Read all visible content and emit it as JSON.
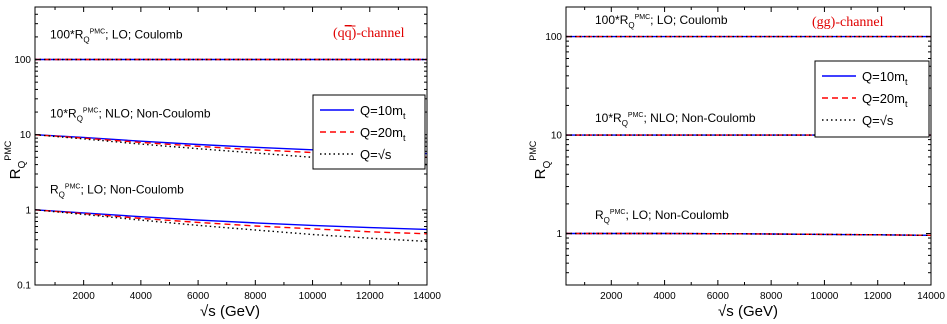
{
  "chart_data": [
    {
      "type": "line",
      "channel": "(qq)-channel",
      "channel_parts": [
        "(q",
        "q",
        ")-channel"
      ],
      "xlabel": "√s (GeV)",
      "ylabel": "R",
      "ylabel_sub": "Q",
      "ylabel_sup": "PMC",
      "yscale": "log",
      "xlim": [
        300,
        14000
      ],
      "ylim": [
        0.1,
        500
      ],
      "x_ticks": [
        2000,
        4000,
        6000,
        8000,
        10000,
        12000,
        14000
      ],
      "x_tick_labels": [
        "2000",
        "4000",
        "6000",
        "8000",
        "10000",
        "12000",
        "14000"
      ],
      "y_ticks": [
        0.1,
        1,
        10,
        100
      ],
      "y_tick_labels": [
        "0.1",
        "1",
        "10",
        "100"
      ],
      "legend": {
        "placement": "right",
        "entries": [
          {
            "text": "Q=10m",
            "sub": "t",
            "color": "#0000ff",
            "dash": "solid"
          },
          {
            "text": "Q=20m",
            "sub": "t",
            "color": "#ff0000",
            "dash": "dashed"
          },
          {
            "text": "Q=√s",
            "sub": "",
            "color": "#000000",
            "dash": "dotted"
          }
        ]
      },
      "annotations": [
        {
          "prefix": "100*R",
          "sub": "Q",
          "sup": "PMC",
          "rest": "; LO; Coulomb",
          "y": 190
        },
        {
          "prefix": "10*R",
          "sub": "Q",
          "sup": "PMC",
          "rest": "; NLO; Non-Coulomb",
          "y": 17
        },
        {
          "prefix": "R",
          "sub": "Q",
          "sup": "PMC",
          "rest": "; LO; Non-Coulomb",
          "y": 1.65
        }
      ],
      "x": [
        300,
        2000,
        4000,
        6000,
        8000,
        10000,
        12000,
        14000
      ],
      "groups": [
        {
          "label": "100*R_Q^PMC; LO; Coulomb",
          "series": [
            {
              "name": "Q=10m_t",
              "values": [
                100,
                100,
                100,
                100,
                100,
                100,
                100,
                100
              ]
            },
            {
              "name": "Q=20m_t",
              "values": [
                100,
                100,
                100,
                100,
                100,
                100,
                100,
                100
              ]
            },
            {
              "name": "Q=√s",
              "values": [
                100,
                100,
                100,
                100,
                100,
                100,
                100,
                100
              ]
            }
          ]
        },
        {
          "label": "10*R_Q^PMC; NLO; Non-Coulomb",
          "series": [
            {
              "name": "Q=10m_t",
              "values": [
                10,
                9.2,
                8.2,
                7.4,
                6.8,
                6.3,
                5.9,
                5.6
              ]
            },
            {
              "name": "Q=20m_t",
              "values": [
                10,
                9.0,
                7.9,
                7.0,
                6.3,
                5.8,
                5.3,
                5.0
              ]
            },
            {
              "name": "Q=√s",
              "values": [
                10,
                8.8,
                7.5,
                6.5,
                5.7,
                5.0,
                4.5,
                4.0
              ]
            }
          ]
        },
        {
          "label": "R_Q^PMC; LO; Non-Coulomb",
          "series": [
            {
              "name": "Q=10m_t",
              "values": [
                1.0,
                0.91,
                0.81,
                0.73,
                0.67,
                0.62,
                0.58,
                0.55
              ]
            },
            {
              "name": "Q=20m_t",
              "values": [
                1.0,
                0.89,
                0.77,
                0.68,
                0.61,
                0.56,
                0.51,
                0.48
              ]
            },
            {
              "name": "Q=√s",
              "values": [
                1.0,
                0.87,
                0.73,
                0.62,
                0.54,
                0.47,
                0.42,
                0.38
              ]
            }
          ]
        }
      ]
    },
    {
      "type": "line",
      "channel": "(gg)-channel",
      "channel_parts": [
        "(gg)-channel",
        "",
        ""
      ],
      "xlabel": "√s (GeV)",
      "ylabel": "R",
      "ylabel_sub": "Q",
      "ylabel_sup": "PMC",
      "yscale": "log",
      "xlim": [
        300,
        14000
      ],
      "ylim": [
        0.3,
        200
      ],
      "x_ticks": [
        2000,
        4000,
        6000,
        8000,
        10000,
        12000,
        14000
      ],
      "x_tick_labels": [
        "2000",
        "4000",
        "6000",
        "8000",
        "10000",
        "12000",
        "14000"
      ],
      "y_ticks": [
        1,
        10,
        100
      ],
      "y_tick_labels": [
        "1",
        "10",
        "100"
      ],
      "legend": {
        "placement": "top-right",
        "entries": [
          {
            "text": "Q=10m",
            "sub": "t",
            "color": "#0000ff",
            "dash": "solid"
          },
          {
            "text": "Q=20m",
            "sub": "t",
            "color": "#ff0000",
            "dash": "dashed"
          },
          {
            "text": "Q=√s",
            "sub": "",
            "color": "#000000",
            "dash": "dotted"
          }
        ]
      },
      "annotations": [
        {
          "prefix": "100*R",
          "sub": "Q",
          "sup": "PMC",
          "rest": "; LO; Coulomb",
          "y": 135
        },
        {
          "prefix": "10*R",
          "sub": "Q",
          "sup": "PMC",
          "rest": "; NLO; Non-Coulomb",
          "y": 13.5
        },
        {
          "prefix": "R",
          "sub": "Q",
          "sup": "PMC",
          "rest": "; LO; Non-Coulomb",
          "y": 1.4
        }
      ],
      "x": [
        300,
        2000,
        4000,
        6000,
        8000,
        10000,
        12000,
        14000
      ],
      "groups": [
        {
          "label": "100*R_Q^PMC; LO; Coulomb",
          "series": [
            {
              "name": "Q=10m_t",
              "values": [
                100,
                100,
                100,
                100,
                100,
                100,
                100,
                100
              ]
            },
            {
              "name": "Q=20m_t",
              "values": [
                100,
                100,
                100,
                100,
                100,
                100,
                100,
                100
              ]
            },
            {
              "name": "Q=√s",
              "values": [
                100,
                100,
                100,
                100,
                100,
                100,
                100,
                100
              ]
            }
          ]
        },
        {
          "label": "10*R_Q^PMC; NLO; Non-Coulomb",
          "series": [
            {
              "name": "Q=10m_t",
              "values": [
                10,
                10,
                10,
                10,
                10,
                10,
                10,
                10
              ]
            },
            {
              "name": "Q=20m_t",
              "values": [
                10,
                10,
                10,
                10,
                10,
                10,
                10,
                10
              ]
            },
            {
              "name": "Q=√s",
              "values": [
                10,
                10,
                10,
                10,
                10,
                10,
                10,
                10
              ]
            }
          ]
        },
        {
          "label": "R_Q^PMC; LO; Non-Coulomb",
          "series": [
            {
              "name": "Q=10m_t",
              "values": [
                1.0,
                1.0,
                1.0,
                0.995,
                0.99,
                0.98,
                0.97,
                0.96
              ]
            },
            {
              "name": "Q=20m_t",
              "values": [
                1.0,
                1.0,
                1.0,
                0.995,
                0.99,
                0.98,
                0.97,
                0.96
              ]
            },
            {
              "name": "Q=√s",
              "values": [
                1.0,
                1.0,
                1.0,
                0.995,
                0.99,
                0.98,
                0.97,
                0.96
              ]
            }
          ]
        }
      ]
    }
  ]
}
